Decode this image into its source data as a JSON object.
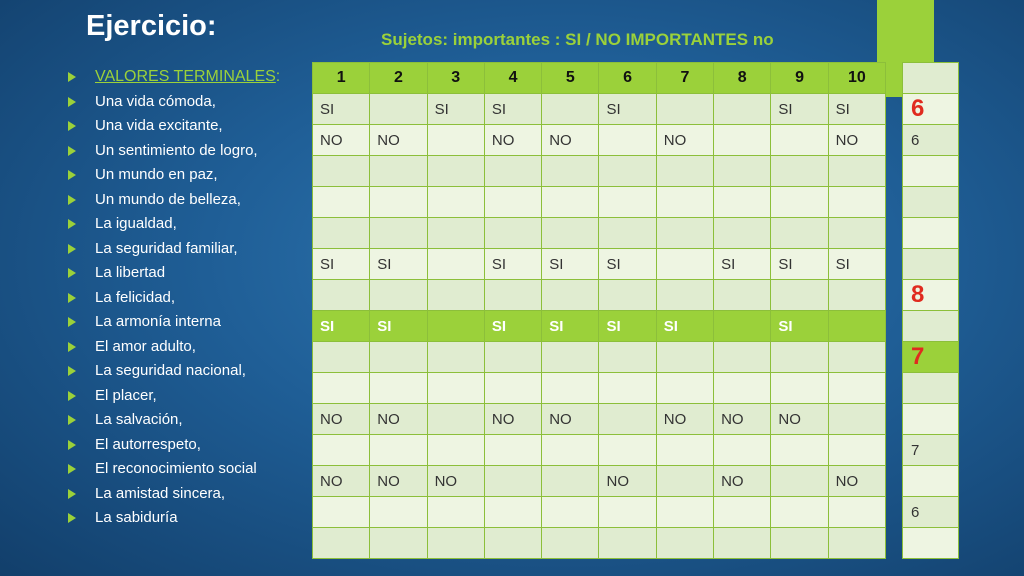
{
  "title": "Ejercicio:",
  "subtitle": "Sujetos: importantes : SI  / NO IMPORTANTES no",
  "values_header": "VALORES TERMINALES",
  "values_header_colon": ":",
  "values": [
    "Una vida cómoda,",
    "Una vida excitante,",
    "Un sentimiento de logro,",
    "Un mundo en paz,",
    "Un mundo de belleza,",
    "La igualdad,",
    "La seguridad familiar,",
    "La libertad",
    "La felicidad,",
    "La armonía interna",
    "El amor adulto,",
    "La seguridad nacional,",
    "El placer,",
    "La salvación,",
    "El autorrespeto,",
    "El reconocimiento social",
    "La amistad sincera,",
    "La sabiduría"
  ],
  "table": {
    "columns": [
      "1",
      "2",
      "3",
      "4",
      "5",
      "6",
      "7",
      "8",
      "9",
      "10"
    ],
    "rows": [
      [
        "SI",
        "",
        "SI",
        "SI",
        "",
        "SI",
        "",
        "",
        "SI",
        "SI"
      ],
      [
        "NO",
        "NO",
        "",
        "NO",
        "NO",
        "",
        "NO",
        "",
        "",
        "NO"
      ],
      [
        "",
        "",
        "",
        "",
        "",
        "",
        "",
        "",
        "",
        ""
      ],
      [
        "",
        "",
        "",
        "",
        "",
        "",
        "",
        "",
        "",
        ""
      ],
      [
        "",
        "",
        "",
        "",
        "",
        "",
        "",
        "",
        "",
        ""
      ],
      [
        "SI",
        "SI",
        "",
        "SI",
        "SI",
        "SI",
        "",
        "SI",
        "SI",
        "SI"
      ],
      [
        "",
        "",
        "",
        "",
        "",
        "",
        "",
        "",
        "",
        ""
      ],
      [
        "SI",
        "SI",
        "",
        "SI",
        "SI",
        "SI",
        "SI",
        "",
        "SI",
        ""
      ],
      [
        "",
        "",
        "",
        "",
        "",
        "",
        "",
        "",
        "",
        ""
      ],
      [
        "",
        "",
        "",
        "",
        "",
        "",
        "",
        "",
        "",
        ""
      ],
      [
        "NO",
        "NO",
        "",
        "NO",
        "NO",
        "",
        "NO",
        "NO",
        "NO",
        ""
      ],
      [
        "",
        "",
        "",
        "",
        "",
        "",
        "",
        "",
        "",
        ""
      ],
      [
        "NO",
        "NO",
        "NO",
        "",
        "",
        "NO",
        "",
        "NO",
        "",
        "NO"
      ],
      [
        "",
        "",
        "",
        "",
        "",
        "",
        "",
        "",
        "",
        ""
      ],
      [
        "",
        "",
        "",
        "",
        "",
        "",
        "",
        "",
        "",
        ""
      ]
    ],
    "highlight_row_index": 7
  },
  "side": {
    "values": [
      "",
      "6",
      "6",
      "",
      "",
      "",
      "",
      "8",
      "",
      "7",
      "",
      "",
      "7",
      "",
      "6",
      ""
    ],
    "big_indices": [
      1,
      7,
      9
    ],
    "highlight_index": 9
  },
  "colors": {
    "accent_green": "#9bd13a",
    "big_number_red": "#e02b1f",
    "background_blue": "#1f5e96"
  }
}
